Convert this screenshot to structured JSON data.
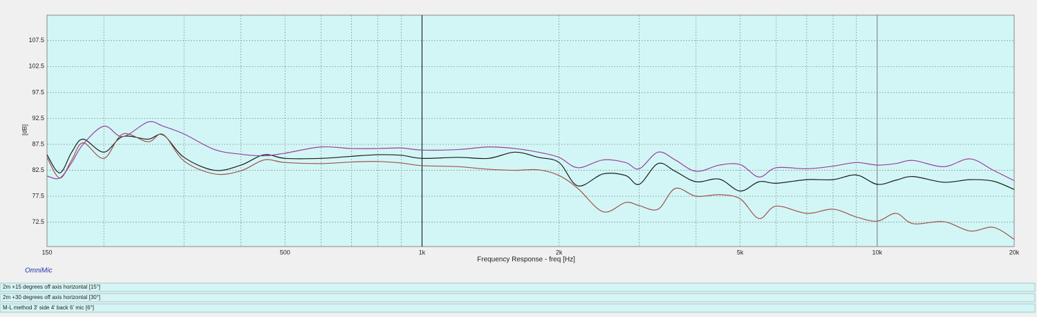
{
  "chart_data": {
    "type": "line",
    "x_label": "Frequency Response - freq [Hz]",
    "y_label": "[dB]",
    "watermark": "OmniMic",
    "x_scale": "log",
    "xlim": [
      150,
      20000
    ],
    "ylim": [
      67.8,
      112.4
    ],
    "xticks": [
      150,
      500,
      {
        "value": 1000,
        "label": "1k"
      },
      {
        "value": 2000,
        "label": "2k"
      },
      {
        "value": 5000,
        "label": "5k"
      },
      {
        "value": 10000,
        "label": "10k"
      },
      {
        "value": 20000,
        "label": "20k"
      }
    ],
    "xgrid_minor": [
      200,
      300,
      400,
      600,
      700,
      800,
      900,
      3000,
      4000,
      6000,
      7000,
      8000,
      9000
    ],
    "yticks": [
      72.5,
      77.5,
      82.5,
      87.5,
      92.5,
      97.5,
      102.5,
      107.5
    ],
    "grid": true,
    "x": [
      150,
      160,
      170,
      180,
      200,
      220,
      250,
      270,
      300,
      350,
      400,
      450,
      500,
      600,
      700,
      800,
      900,
      1000,
      1200,
      1400,
      1600,
      1800,
      2000,
      2200,
      2500,
      2800,
      3000,
      3300,
      3600,
      4000,
      4500,
      5000,
      5500,
      6000,
      7000,
      8000,
      9000,
      10000,
      11000,
      12000,
      14000,
      16000,
      18000,
      20000
    ],
    "series": [
      {
        "name": "2m +15 degrees off axis horizontal [15°]",
        "color": "#1a1a1a",
        "values": [
          85.5,
          82,
          86,
          88.5,
          86,
          89,
          88.5,
          89.3,
          85,
          82.5,
          83.5,
          85.5,
          84.8,
          84.8,
          85.2,
          85.5,
          85.4,
          84.8,
          85.0,
          84.8,
          86.0,
          85,
          84.0,
          79.5,
          81.8,
          81.5,
          79.8,
          83.8,
          82.3,
          80.3,
          80.8,
          78.5,
          80.3,
          80,
          80.7,
          80.7,
          81.6,
          79.8,
          80.6,
          81.3,
          80.2,
          80.7,
          80.4,
          78.8
        ]
      },
      {
        "name": "2m +30 degrees off axis horizontal [30°]",
        "color": "#a0504a",
        "values": [
          85,
          81,
          84.5,
          87.8,
          84.8,
          89.5,
          88,
          89.4,
          84.3,
          81.8,
          82.4,
          84.5,
          84,
          83.8,
          84.1,
          84.2,
          83.9,
          83.4,
          83.2,
          82.7,
          82.5,
          82.6,
          81.5,
          79,
          74.5,
          76.3,
          75.7,
          75.0,
          79.0,
          77.5,
          77.8,
          77.0,
          73.2,
          75.6,
          74.2,
          75.0,
          73.5,
          72.7,
          74.2,
          72.2,
          72.6,
          70.8,
          71.5,
          69.2
        ]
      },
      {
        "name": "M-L method 3' side 4' back 6' mic [6°]",
        "color": "#9b3d9b",
        "values": [
          81.4,
          81.0,
          84,
          87.5,
          91.0,
          89,
          91.8,
          91,
          89.5,
          86.5,
          85.6,
          85.3,
          85.8,
          87.0,
          86.7,
          86.7,
          86.8,
          86.4,
          86.5,
          87.0,
          86.7,
          86.0,
          85.0,
          83,
          84.5,
          84,
          82.8,
          86.0,
          84.5,
          82.3,
          83.5,
          83.6,
          81.2,
          83,
          82.8,
          83.3,
          84.0,
          83.5,
          83.8,
          84.4,
          83.2,
          84.7,
          82.5,
          80.5
        ]
      }
    ]
  }
}
